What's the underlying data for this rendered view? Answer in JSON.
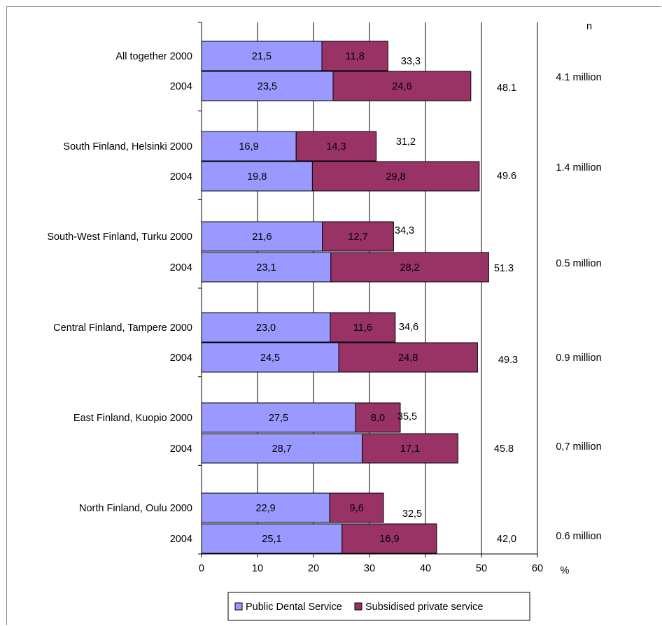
{
  "chart_data": {
    "type": "bar",
    "orientation": "horizontal",
    "stacked": true,
    "categories": [
      "All together 2000",
      "2004",
      "South Finland, Helsinki 2000",
      "2004",
      "South-West Finland, Turku 2000",
      "2004",
      "Central Finland, Tampere 2000",
      "2004",
      "East Finland, Kuopio 2000",
      "2004",
      "North Finland, Oulu 2000",
      "2004"
    ],
    "series": [
      {
        "name": "Public Dental Service",
        "color": "#9999ff",
        "values": [
          21.5,
          23.5,
          16.9,
          19.8,
          21.6,
          23.1,
          23.0,
          24.5,
          27.5,
          28.7,
          22.9,
          25.1
        ],
        "labels": [
          "21,5",
          "23,5",
          "16,9",
          "19,8",
          "21,6",
          "23,1",
          "23,0",
          "24,5",
          "27,5",
          "28,7",
          "22,9",
          "25,1"
        ]
      },
      {
        "name": "Subsidised private service",
        "color": "#993366",
        "values": [
          11.8,
          24.6,
          14.3,
          29.8,
          12.7,
          28.2,
          11.6,
          24.8,
          8.0,
          17.1,
          9.6,
          16.9
        ],
        "labels": [
          "11,8",
          "24,6",
          "14,3",
          "29,8",
          "12,7",
          "28,2",
          "11,6",
          "24,8",
          "8,0",
          "17,1",
          "9,6",
          "16,9"
        ]
      }
    ],
    "total_labels": [
      "33,3",
      "48.1",
      "31,2",
      "49.6",
      "34,3",
      "51.3",
      "34,6",
      "49.3",
      "35,5",
      "45.8",
      "32,5",
      "42,0"
    ],
    "n_header": "n",
    "n_labels": [
      "4.1 million",
      "1.4 million",
      "0.5 million",
      "0.9 million",
      "0,7 million",
      "0.6 million"
    ],
    "x_ticks": [
      "0",
      "10",
      "20",
      "30",
      "40",
      "50",
      "60"
    ],
    "xlim": [
      0,
      60
    ],
    "x_unit": "%",
    "grid": true,
    "legend_position": "bottom"
  }
}
